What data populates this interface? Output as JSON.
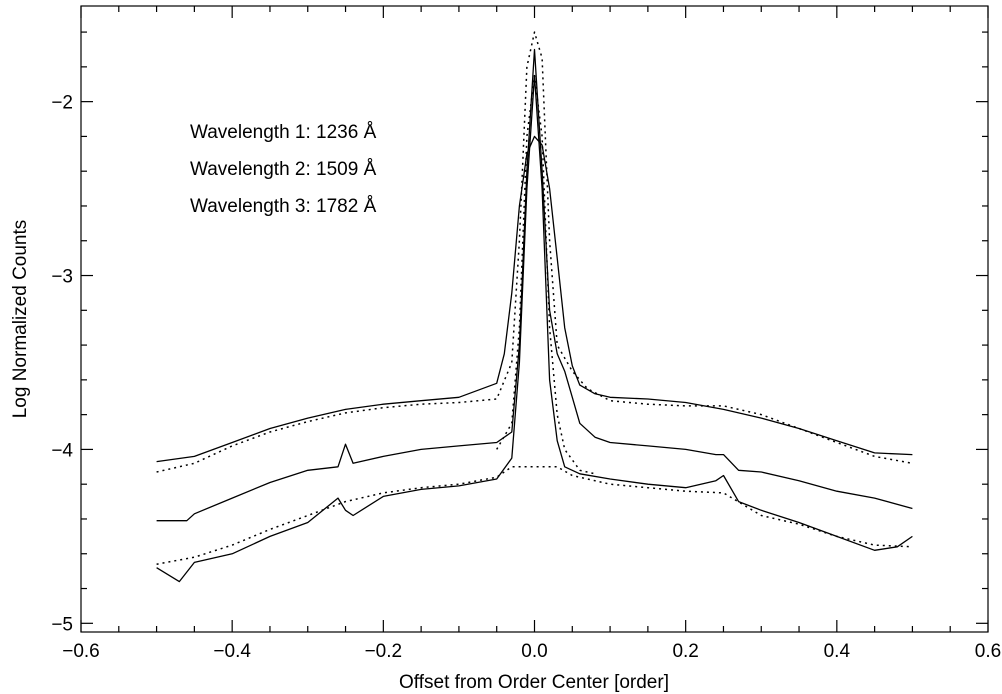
{
  "chart_data": {
    "type": "line",
    "title": "",
    "xlabel": "Offset from Order Center [order]",
    "ylabel": "Log Normalized Counts",
    "xlim": [
      -0.6,
      0.6
    ],
    "ylim": [
      -5.05,
      -1.45
    ],
    "xticks": [
      -0.6,
      -0.4,
      -0.2,
      0.0,
      0.2,
      0.4,
      0.6
    ],
    "xtick_labels": [
      "−0.6",
      "−0.4",
      "−0.2",
      "0.0",
      "0.2",
      "0.4",
      "0.6"
    ],
    "yticks": [
      -5,
      -4,
      -3,
      -2
    ],
    "ytick_labels": [
      "−5",
      "−4",
      "−3",
      "−2"
    ],
    "grid": false,
    "annotations": [
      "Wavelength 1: 1236 Å",
      "Wavelength 2: 1509 Å",
      "Wavelength 3: 1782 Å"
    ],
    "series": [
      {
        "style": "solid",
        "x": [
          -0.5,
          -0.45,
          -0.4,
          -0.35,
          -0.3,
          -0.25,
          -0.2,
          -0.15,
          -0.1,
          -0.05,
          -0.04,
          -0.03,
          -0.02,
          -0.01,
          0.0,
          0.01,
          0.02,
          0.03,
          0.04,
          0.05,
          0.06,
          0.08,
          0.1,
          0.15,
          0.2,
          0.25,
          0.3,
          0.35,
          0.4,
          0.45,
          0.5
        ],
        "y": [
          -4.07,
          -4.04,
          -3.96,
          -3.88,
          -3.82,
          -3.77,
          -3.74,
          -3.72,
          -3.7,
          -3.62,
          -3.45,
          -3.1,
          -2.6,
          -2.3,
          -2.2,
          -2.25,
          -2.5,
          -2.9,
          -3.3,
          -3.52,
          -3.63,
          -3.68,
          -3.7,
          -3.71,
          -3.73,
          -3.77,
          -3.82,
          -3.88,
          -3.95,
          -4.02,
          -4.03
        ]
      },
      {
        "style": "dotted",
        "x": [
          -0.5,
          -0.45,
          -0.4,
          -0.35,
          -0.3,
          -0.25,
          -0.2,
          -0.15,
          -0.1,
          -0.05,
          -0.03,
          -0.02,
          -0.01,
          0.0,
          0.01,
          0.02,
          0.03,
          0.05,
          0.07,
          0.1,
          0.15,
          0.2,
          0.25,
          0.3,
          0.35,
          0.4,
          0.45,
          0.5
        ],
        "y": [
          -4.13,
          -4.08,
          -3.98,
          -3.9,
          -3.84,
          -3.79,
          -3.76,
          -3.74,
          -3.73,
          -3.71,
          -3.5,
          -2.8,
          -1.8,
          -1.6,
          -1.75,
          -2.8,
          -3.4,
          -3.55,
          -3.65,
          -3.72,
          -3.74,
          -3.75,
          -3.75,
          -3.8,
          -3.88,
          -3.96,
          -4.04,
          -4.08
        ]
      },
      {
        "style": "solid",
        "x": [
          -0.5,
          -0.46,
          -0.45,
          -0.4,
          -0.35,
          -0.3,
          -0.26,
          -0.25,
          -0.24,
          -0.2,
          -0.15,
          -0.1,
          -0.05,
          -0.03,
          -0.02,
          -0.01,
          0.0,
          0.01,
          0.02,
          0.03,
          0.04,
          0.05,
          0.06,
          0.08,
          0.1,
          0.15,
          0.2,
          0.24,
          0.25,
          0.27,
          0.3,
          0.35,
          0.4,
          0.45,
          0.5
        ],
        "y": [
          -4.41,
          -4.41,
          -4.37,
          -4.28,
          -4.19,
          -4.12,
          -4.1,
          -3.97,
          -4.08,
          -4.04,
          -4.0,
          -3.98,
          -3.96,
          -3.9,
          -3.4,
          -2.4,
          -1.7,
          -2.4,
          -3.2,
          -3.45,
          -3.55,
          -3.7,
          -3.85,
          -3.93,
          -3.96,
          -3.98,
          -4.0,
          -4.03,
          -4.03,
          -4.12,
          -4.13,
          -4.18,
          -4.24,
          -4.28,
          -4.34
        ]
      },
      {
        "style": "dotted",
        "x": [
          -0.05,
          -0.03,
          -0.02,
          -0.01,
          0.0,
          0.01,
          0.02,
          0.03,
          0.04,
          0.06,
          0.08
        ],
        "y": [
          -4.0,
          -3.85,
          -3.3,
          -2.2,
          -1.85,
          -2.2,
          -3.3,
          -3.8,
          -4.0,
          -4.12,
          -4.14
        ]
      },
      {
        "style": "solid",
        "x": [
          -0.5,
          -0.47,
          -0.45,
          -0.4,
          -0.35,
          -0.3,
          -0.26,
          -0.25,
          -0.24,
          -0.2,
          -0.15,
          -0.1,
          -0.05,
          -0.03,
          -0.02,
          -0.01,
          0.0,
          0.01,
          0.02,
          0.03,
          0.04,
          0.06,
          0.1,
          0.15,
          0.2,
          0.24,
          0.25,
          0.27,
          0.3,
          0.35,
          0.4,
          0.45,
          0.48,
          0.5
        ],
        "y": [
          -4.68,
          -4.76,
          -4.65,
          -4.6,
          -4.5,
          -4.42,
          -4.28,
          -4.35,
          -4.38,
          -4.27,
          -4.23,
          -4.21,
          -4.17,
          -4.05,
          -3.5,
          -2.5,
          -1.85,
          -2.5,
          -3.6,
          -3.95,
          -4.1,
          -4.14,
          -4.17,
          -4.2,
          -4.22,
          -4.18,
          -4.15,
          -4.3,
          -4.35,
          -4.42,
          -4.5,
          -4.58,
          -4.56,
          -4.5
        ]
      },
      {
        "style": "dotted",
        "x": [
          -0.5,
          -0.45,
          -0.4,
          -0.35,
          -0.3,
          -0.25,
          -0.2,
          -0.15,
          -0.1,
          -0.05,
          -0.03,
          0.03,
          0.05,
          0.1,
          0.15,
          0.2,
          0.25,
          0.3,
          0.35,
          0.4,
          0.45,
          0.5
        ],
        "y": [
          -4.66,
          -4.62,
          -4.55,
          -4.46,
          -4.38,
          -4.3,
          -4.25,
          -4.22,
          -4.2,
          -4.16,
          -4.1,
          -4.1,
          -4.15,
          -4.2,
          -4.22,
          -4.24,
          -4.25,
          -4.38,
          -4.43,
          -4.5,
          -4.55,
          -4.56
        ]
      }
    ]
  }
}
